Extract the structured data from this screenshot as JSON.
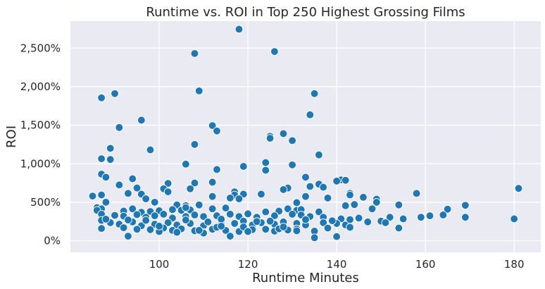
{
  "chart_data": {
    "type": "scatter",
    "title": "Runtime vs. ROI in Top 250 Highest Grossing Films",
    "xlabel": "Runtime Minutes",
    "ylabel": "ROI",
    "xlim": [
      80,
      186
    ],
    "ylim": [
      -150,
      2850
    ],
    "x_ticks": [
      100,
      120,
      140,
      160,
      180
    ],
    "y_ticks": [
      0,
      500,
      1000,
      1500,
      2000,
      2500
    ],
    "y_tick_format": "percent",
    "grid": true,
    "background": "#eaeaf2",
    "point_color": "#1f77b4",
    "points": [
      [
        118,
        2745
      ],
      [
        126,
        2455
      ],
      [
        108,
        2430
      ],
      [
        109,
        1945
      ],
      [
        90,
        1910
      ],
      [
        135,
        1910
      ],
      [
        87,
        1855
      ],
      [
        134,
        1635
      ],
      [
        96,
        1565
      ],
      [
        112,
        1495
      ],
      [
        91,
        1470
      ],
      [
        113,
        1425
      ],
      [
        128,
        1390
      ],
      [
        125,
        1355
      ],
      [
        125,
        1330
      ],
      [
        130,
        1300
      ],
      [
        108,
        1250
      ],
      [
        89,
        1200
      ],
      [
        98,
        1180
      ],
      [
        136,
        1115
      ],
      [
        87,
        1065
      ],
      [
        89,
        1055
      ],
      [
        124,
        1015
      ],
      [
        106,
        995
      ],
      [
        130,
        985
      ],
      [
        119,
        965
      ],
      [
        124,
        915
      ],
      [
        113,
        925
      ],
      [
        87,
        865
      ],
      [
        88,
        825
      ],
      [
        133,
        825
      ],
      [
        94,
        805
      ],
      [
        141,
        790
      ],
      [
        142,
        785
      ],
      [
        140,
        775
      ],
      [
        112,
        760
      ],
      [
        108,
        750
      ],
      [
        136,
        735
      ],
      [
        102,
        745
      ],
      [
        91,
        725
      ],
      [
        134,
        705
      ],
      [
        137,
        695
      ],
      [
        129,
        685
      ],
      [
        128,
        665
      ],
      [
        107,
        675
      ],
      [
        101,
        675
      ],
      [
        95,
        685
      ],
      [
        117,
        635
      ],
      [
        143,
        615
      ],
      [
        158,
        615
      ],
      [
        143,
        595
      ],
      [
        119,
        605
      ],
      [
        123,
        605
      ],
      [
        117,
        595
      ],
      [
        102,
        635
      ],
      [
        93,
        615
      ],
      [
        96,
        605
      ],
      [
        85,
        580
      ],
      [
        87,
        595
      ],
      [
        97,
        545
      ],
      [
        138,
        555
      ],
      [
        133,
        575
      ],
      [
        112,
        575
      ],
      [
        116,
        555
      ],
      [
        146,
        565
      ],
      [
        149,
        540
      ],
      [
        106,
        455
      ],
      [
        104,
        465
      ],
      [
        109,
        465
      ],
      [
        118,
        545
      ],
      [
        131,
        495
      ],
      [
        149,
        500
      ],
      [
        154,
        465
      ],
      [
        169,
        460
      ],
      [
        88,
        500
      ],
      [
        86,
        430
      ],
      [
        87,
        415
      ],
      [
        94,
        415
      ],
      [
        86,
        395
      ],
      [
        92,
        385
      ],
      [
        96,
        370
      ],
      [
        98,
        380
      ],
      [
        100,
        390
      ],
      [
        103,
        405
      ],
      [
        105,
        395
      ],
      [
        107,
        400
      ],
      [
        112,
        415
      ],
      [
        115,
        425
      ],
      [
        120,
        350
      ],
      [
        124,
        375
      ],
      [
        127,
        385
      ],
      [
        129,
        415
      ],
      [
        131,
        395
      ],
      [
        132,
        405
      ],
      [
        136,
        375
      ],
      [
        142,
        455
      ],
      [
        144,
        470
      ],
      [
        148,
        415
      ],
      [
        165,
        410
      ],
      [
        87,
        345
      ],
      [
        90,
        330
      ],
      [
        92,
        320
      ],
      [
        95,
        340
      ],
      [
        97,
        305
      ],
      [
        99,
        325
      ],
      [
        101,
        345
      ],
      [
        103,
        295
      ],
      [
        106,
        315
      ],
      [
        108,
        335
      ],
      [
        110,
        315
      ],
      [
        113,
        325
      ],
      [
        116,
        345
      ],
      [
        118,
        315
      ],
      [
        122,
        305
      ],
      [
        126,
        325
      ],
      [
        130,
        345
      ],
      [
        132,
        335
      ],
      [
        134,
        315
      ],
      [
        137,
        305
      ],
      [
        141,
        285
      ],
      [
        145,
        295
      ],
      [
        150,
        255
      ],
      [
        152,
        305
      ],
      [
        155,
        285
      ],
      [
        159,
        305
      ],
      [
        161,
        325
      ],
      [
        164,
        335
      ],
      [
        169,
        305
      ],
      [
        180,
        285
      ],
      [
        181,
        680
      ],
      [
        87,
        265
      ],
      [
        89,
        235
      ],
      [
        91,
        215
      ],
      [
        94,
        245
      ],
      [
        96,
        195
      ],
      [
        99,
        215
      ],
      [
        102,
        235
      ],
      [
        104,
        205
      ],
      [
        107,
        225
      ],
      [
        110,
        195
      ],
      [
        111,
        245
      ],
      [
        114,
        215
      ],
      [
        117,
        225
      ],
      [
        119,
        255
      ],
      [
        121,
        205
      ],
      [
        123,
        235
      ],
      [
        126,
        215
      ],
      [
        128,
        245
      ],
      [
        131,
        225
      ],
      [
        133,
        205
      ],
      [
        137,
        235
      ],
      [
        140,
        225
      ],
      [
        142,
        205
      ],
      [
        147,
        245
      ],
      [
        151,
        235
      ],
      [
        87,
        160
      ],
      [
        92,
        170
      ],
      [
        95,
        150
      ],
      [
        98,
        145
      ],
      [
        101,
        165
      ],
      [
        103,
        135
      ],
      [
        105,
        155
      ],
      [
        108,
        130
      ],
      [
        110,
        110
      ],
      [
        112,
        150
      ],
      [
        115,
        135
      ],
      [
        118,
        120
      ],
      [
        121,
        145
      ],
      [
        124,
        150
      ],
      [
        126,
        125
      ],
      [
        129,
        140
      ],
      [
        131,
        155
      ],
      [
        135,
        125
      ],
      [
        138,
        165
      ],
      [
        143,
        175
      ],
      [
        154,
        165
      ],
      [
        93,
        60
      ],
      [
        110,
        100
      ],
      [
        116,
        60
      ],
      [
        135,
        40
      ],
      [
        140,
        55
      ],
      [
        100,
        120
      ],
      [
        104,
        110
      ],
      [
        119,
        180
      ],
      [
        127,
        155
      ],
      [
        122,
        250
      ],
      [
        88,
        280
      ],
      [
        93,
        270
      ],
      [
        97,
        265
      ],
      [
        106,
        270
      ],
      [
        114,
        280
      ],
      [
        125,
        255
      ],
      [
        133,
        275
      ],
      [
        139,
        260
      ],
      [
        143,
        275
      ],
      [
        100,
        190
      ],
      [
        113,
        175
      ],
      [
        128,
        180
      ],
      [
        109,
        135
      ],
      [
        114,
        190
      ],
      [
        99,
        500
      ],
      [
        106,
        430
      ],
      [
        120,
        120
      ],
      [
        131,
        130
      ]
    ]
  }
}
